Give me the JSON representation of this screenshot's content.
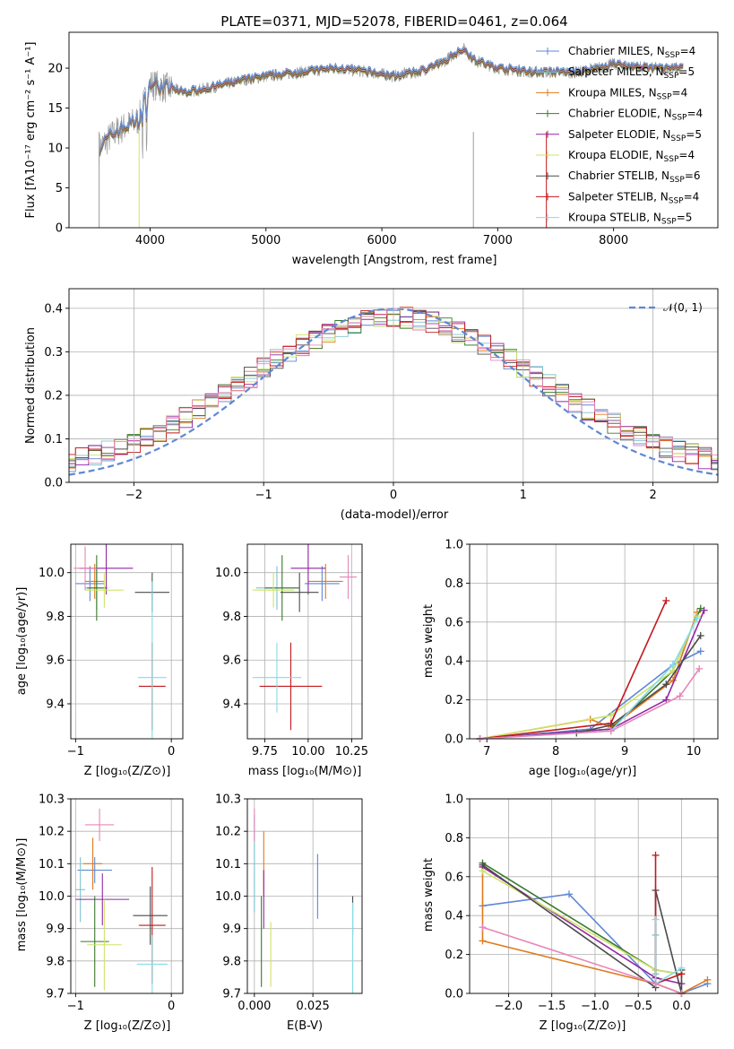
{
  "colors": [
    "#5f87d4",
    "#7fc3cc",
    "#e07a1c",
    "#3a7a2a",
    "#9226a6",
    "#cfe36a",
    "#4a4a4a",
    "#c2181c",
    "#86dbe6",
    "#e886b8",
    "#9a9a9a"
  ],
  "spectrum": {
    "title": "PLATE=0371, MJD=52078, FIBERID=0461, z=0.064",
    "xlabel": "wavelength [Angstrom, rest frame]",
    "ylabel": "Flux [fλ10⁻¹⁷ erg cm⁻² s⁻¹ A⁻¹]",
    "legend": [
      {
        "label": "Chabrier MILES, N",
        "sub": "SSP",
        "suffix": "=4"
      },
      {
        "label": "Salpeter MILES, N",
        "sub": "SSP",
        "suffix": "=5"
      },
      {
        "label": "Kroupa MILES, N",
        "sub": "SSP",
        "suffix": "=4"
      },
      {
        "label": "Chabrier ELODIE, N",
        "sub": "SSP",
        "suffix": "=4"
      },
      {
        "label": "Salpeter ELODIE, N",
        "sub": "SSP",
        "suffix": "=5"
      },
      {
        "label": "Kroupa ELODIE, N",
        "sub": "SSP",
        "suffix": "=4"
      },
      {
        "label": "Chabrier STELIB, N",
        "sub": "SSP",
        "suffix": "=6"
      },
      {
        "label": "Salpeter STELIB, N",
        "sub": "SSP",
        "suffix": "=4"
      },
      {
        "label": "Kroupa STELIB, N",
        "sub": "SSP",
        "suffix": "=5"
      }
    ]
  },
  "residuals": {
    "xlabel": "(data-model)/error",
    "ylabel": "Normed distribution",
    "legend_label": "𝒩(0, 1)"
  },
  "panel_c": {
    "xlabel_pre": "Z [log",
    "xlabel_sub": "10",
    "xlabel_post": "(Z/Z⊙)]",
    "ylabel": "age  [log₁₀(age/yr)]"
  },
  "panel_d": {
    "xlabel": "mass [log₁₀(M/M⊙)]"
  },
  "panel_e": {
    "xlabel": "age  [log₁₀(age/yr)]",
    "ylabel": "mass weight"
  },
  "panel_f": {
    "xlabel": "Z [log₁₀(Z/Z⊙)]",
    "ylabel": "mass [log₁₀(M/M⊙)]"
  },
  "panel_g": {
    "xlabel": "E(B-V)"
  },
  "panel_h": {
    "xlabel": "Z [log₁₀(Z/Z⊙)]",
    "ylabel": "mass weight"
  },
  "chart_data": [
    {
      "type": "line",
      "name": "spectrum",
      "xlim": [
        3300,
        8900
      ],
      "ylim": [
        0,
        24.5
      ],
      "xticks": [
        4000,
        5000,
        6000,
        7000,
        8000
      ],
      "yticks": [
        0,
        5,
        10,
        15,
        20
      ],
      "grid": false,
      "legend_position": "top-right",
      "data_trend": [
        [
          3560,
          10
        ],
        [
          3700,
          12
        ],
        [
          3900,
          13.5
        ],
        [
          4000,
          18
        ],
        [
          4300,
          17
        ],
        [
          4500,
          17.5
        ],
        [
          4800,
          18.5
        ],
        [
          5000,
          19
        ],
        [
          5300,
          19.5
        ],
        [
          5600,
          20
        ],
        [
          5900,
          19.5
        ],
        [
          6100,
          19
        ],
        [
          6300,
          19.5
        ],
        [
          6500,
          20.5
        ],
        [
          6700,
          22.5
        ],
        [
          6800,
          21
        ],
        [
          7000,
          20
        ],
        [
          7300,
          19.5
        ],
        [
          7700,
          19.5
        ],
        [
          8000,
          20.5
        ],
        [
          8300,
          20
        ],
        [
          8600,
          20
        ]
      ]
    },
    {
      "type": "bar",
      "name": "residual-histograms",
      "xlim": [
        -2.5,
        2.5
      ],
      "ylim": [
        0,
        0.445
      ],
      "xticks": [
        -2,
        -1,
        0,
        1,
        2
      ],
      "yticks": [
        0.0,
        0.1,
        0.2,
        0.3,
        0.4
      ],
      "grid": true,
      "legend_position": "top-right",
      "normal": {
        "mean": 0,
        "sigma": 1,
        "peak": 0.399
      }
    },
    {
      "type": "scatter",
      "name": "Z-vs-age",
      "xlim": [
        -1.05,
        0.12
      ],
      "ylim": [
        9.24,
        10.13
      ],
      "xticks": [
        -1,
        0
      ],
      "yticks": [
        9.4,
        9.6,
        9.8,
        10.0
      ],
      "grid": true,
      "points": [
        {
          "x": -0.85,
          "y": 9.95,
          "xe": 0.15,
          "ye": 0.08
        },
        {
          "x": -0.78,
          "y": 9.93,
          "xe": 0.12,
          "ye": 0.1
        },
        {
          "x": -0.8,
          "y": 9.96,
          "xe": 0.1,
          "ye": 0.08
        },
        {
          "x": -0.78,
          "y": 9.93,
          "xe": 0.1,
          "ye": 0.15
        },
        {
          "x": -0.68,
          "y": 10.02,
          "xe": 0.28,
          "ye": 0.12
        },
        {
          "x": -0.7,
          "y": 9.92,
          "xe": 0.2,
          "ye": 0.08
        },
        {
          "x": -0.2,
          "y": 9.91,
          "xe": 0.18,
          "ye": 0.09
        },
        {
          "x": -0.2,
          "y": 9.48,
          "xe": 0.14,
          "ye": 0.2
        },
        {
          "x": -0.2,
          "y": 9.52,
          "xe": 0.15,
          "ye": 0.44
        },
        {
          "x": -0.9,
          "y": 10.02,
          "xe": 0.12,
          "ye": 0.1
        }
      ]
    },
    {
      "type": "scatter",
      "name": "mass-vs-age",
      "xlim": [
        9.65,
        10.31
      ],
      "ylim": [
        9.24,
        10.13
      ],
      "xticks": [
        9.75,
        10.0,
        10.25
      ],
      "yticks": [
        9.4,
        9.6,
        9.8,
        10.0
      ],
      "grid": true,
      "points": [
        {
          "x": 10.08,
          "y": 9.95,
          "xe": 0.1,
          "ye": 0.08
        },
        {
          "x": 9.82,
          "y": 9.93,
          "xe": 0.12,
          "ye": 0.1
        },
        {
          "x": 10.1,
          "y": 9.96,
          "xe": 0.1,
          "ye": 0.08
        },
        {
          "x": 9.85,
          "y": 9.93,
          "xe": 0.1,
          "ye": 0.15
        },
        {
          "x": 10.0,
          "y": 10.02,
          "xe": 0.1,
          "ye": 0.12
        },
        {
          "x": 9.8,
          "y": 9.92,
          "xe": 0.12,
          "ye": 0.08
        },
        {
          "x": 9.95,
          "y": 9.91,
          "xe": 0.11,
          "ye": 0.09
        },
        {
          "x": 9.9,
          "y": 9.48,
          "xe": 0.18,
          "ye": 0.2
        },
        {
          "x": 9.82,
          "y": 9.52,
          "xe": 0.14,
          "ye": 0.16
        },
        {
          "x": 10.23,
          "y": 9.98,
          "xe": 0.05,
          "ye": 0.1
        }
      ]
    },
    {
      "type": "line",
      "name": "age-vs-massweight",
      "xlim": [
        6.75,
        10.35
      ],
      "ylim": [
        0,
        1
      ],
      "xticks": [
        7,
        8,
        9,
        10
      ],
      "yticks": [
        0.0,
        0.2,
        0.4,
        0.6,
        0.8,
        1.0
      ],
      "grid": true,
      "series": [
        {
          "x": [
            6.9,
            8.5,
            9.7,
            10.1
          ],
          "y": [
            0.0,
            0.05,
            0.38,
            0.45
          ]
        },
        {
          "x": 6.9,
          "y": 0
        },
        {
          "x": [
            6.9,
            8.5,
            8.8,
            9.7,
            10.05
          ],
          "y": [
            0.0,
            0.1,
            0.06,
            0.3,
            0.65
          ]
        },
        {
          "x": [
            6.9,
            8.8,
            9.7,
            10.1
          ],
          "y": [
            0.0,
            0.05,
            0.35,
            0.67
          ]
        },
        {
          "x": [
            6.9,
            8.8,
            9.6,
            10.15
          ],
          "y": [
            0.0,
            0.05,
            0.2,
            0.66
          ]
        },
        {
          "x": [
            6.9,
            8.8,
            9.7,
            10.05
          ],
          "y": [
            0.0,
            0.12,
            0.35,
            0.63
          ]
        },
        {
          "x": [
            8.3,
            8.8,
            9.6,
            10.1
          ],
          "y": [
            0.03,
            0.07,
            0.28,
            0.53
          ]
        },
        {
          "x": [
            6.9,
            8.8,
            9.6
          ],
          "y": [
            0.0,
            0.08,
            0.71
          ]
        },
        {
          "x": [
            6.9,
            8.8,
            9.7,
            10.05
          ],
          "y": [
            0.0,
            0.04,
            0.38,
            0.62
          ]
        },
        {
          "x": [
            6.9,
            8.8,
            9.8,
            10.08
          ],
          "y": [
            0.0,
            0.04,
            0.22,
            0.36
          ]
        }
      ]
    },
    {
      "type": "scatter",
      "name": "Z-vs-mass",
      "xlim": [
        -1.05,
        0.12
      ],
      "ylim": [
        9.7,
        10.3
      ],
      "xticks": [
        -1,
        0
      ],
      "yticks": [
        9.7,
        9.8,
        9.9,
        10.0,
        10.1,
        10.2,
        10.3
      ],
      "grid": true,
      "points": [
        {
          "x": -0.8,
          "y": 10.08,
          "xe": 0.18,
          "ye": 0.04
        },
        {
          "x": -0.95,
          "y": 10.02,
          "xe": 0.05,
          "ye": 0.1
        },
        {
          "x": -0.82,
          "y": 10.1,
          "xe": 0.1,
          "ye": 0.08
        },
        {
          "x": -0.8,
          "y": 9.86,
          "xe": 0.15,
          "ye": 0.14
        },
        {
          "x": -0.72,
          "y": 9.99,
          "xe": 0.28,
          "ye": 0.08
        },
        {
          "x": -0.7,
          "y": 9.85,
          "xe": 0.18,
          "ye": 0.14
        },
        {
          "x": -0.22,
          "y": 9.94,
          "xe": 0.18,
          "ye": 0.09
        },
        {
          "x": -0.2,
          "y": 9.91,
          "xe": 0.14,
          "ye": 0.18
        },
        {
          "x": -0.2,
          "y": 9.79,
          "xe": 0.16,
          "ye": 0.09
        },
        {
          "x": -0.75,
          "y": 10.22,
          "xe": 0.15,
          "ye": 0.05
        }
      ]
    },
    {
      "type": "scatter",
      "name": "EBV-vs-mass",
      "xlim": [
        -0.003,
        0.046
      ],
      "ylim": [
        9.7,
        10.3
      ],
      "xticks": [
        0.0,
        0.025
      ],
      "yticks": [
        9.7,
        9.8,
        9.9,
        10.0,
        10.1,
        10.2,
        10.3
      ],
      "grid": true,
      "points": [
        {
          "x": 0.027,
          "y": 10.03,
          "xe": 0,
          "ye": 0.1
        },
        {
          "x": 0.0,
          "y": 10.1,
          "xe": 0,
          "ye": 0.15
        },
        {
          "x": 0.004,
          "y": 10.1,
          "xe": 0,
          "ye": 0.1
        },
        {
          "x": 0.003,
          "y": 9.86,
          "xe": 0,
          "ye": 0.14
        },
        {
          "x": 0.004,
          "y": 9.99,
          "xe": 0,
          "ye": 0.09
        },
        {
          "x": 0.007,
          "y": 9.82,
          "xe": 0,
          "ye": 0.1
        },
        {
          "x": 0.042,
          "y": 9.94,
          "xe": 0,
          "ye": 0.06
        },
        {
          "x": 0.0465,
          "y": 10.01,
          "xe": 0,
          "ye": 0.09
        },
        {
          "x": 0.042,
          "y": 9.84,
          "xe": 0,
          "ye": 0.14
        },
        {
          "x": 0.0,
          "y": 10.22,
          "xe": 0,
          "ye": 0.05
        }
      ]
    },
    {
      "type": "line",
      "name": "Z-vs-massweight",
      "xlim": [
        -2.45,
        0.42
      ],
      "ylim": [
        0,
        1
      ],
      "xticks": [
        -2.0,
        -1.5,
        -1.0,
        -0.5,
        0.0
      ],
      "yticks": [
        0.0,
        0.2,
        0.4,
        0.6,
        0.8,
        1.0
      ],
      "grid": true,
      "series": [
        {
          "x": [
            -2.3,
            -1.3,
            -0.3,
            0.0,
            0.3
          ],
          "y": [
            0.45,
            0.51,
            0.05,
            0.0,
            0.05
          ]
        },
        {
          "x": [
            -0.3,
            -0.3
          ],
          "y": [
            0.1,
            0.3
          ]
        },
        {
          "x": [
            -2.3,
            -2.3,
            -0.3,
            0.0,
            0.3
          ],
          "y": [
            0.65,
            0.27,
            0.05,
            0.0,
            0.07
          ]
        },
        {
          "x": [
            -2.3,
            -0.3,
            0.0
          ],
          "y": [
            0.67,
            0.12,
            0.1
          ]
        },
        {
          "x": [
            -2.3,
            -0.3,
            0.0
          ],
          "y": [
            0.65,
            0.08,
            0.05
          ]
        },
        {
          "x": [
            -2.3,
            -0.3,
            0.0
          ],
          "y": [
            0.63,
            0.12,
            0.1
          ]
        },
        {
          "x": [
            -2.3,
            -0.3,
            -0.3,
            0.0,
            0.0
          ],
          "y": [
            0.66,
            0.03,
            0.53,
            0.0,
            0.12
          ]
        },
        {
          "x": [
            -0.3,
            -0.3,
            0.0
          ],
          "y": [
            0.71,
            0.05,
            0.1
          ]
        },
        {
          "x": [
            -0.3,
            -0.3,
            0.0
          ],
          "y": [
            0.38,
            0.05,
            0.13
          ]
        },
        {
          "x": [
            -2.3,
            -0.3,
            0.0
          ],
          "y": [
            0.34,
            0.05,
            0.0
          ]
        }
      ]
    }
  ]
}
